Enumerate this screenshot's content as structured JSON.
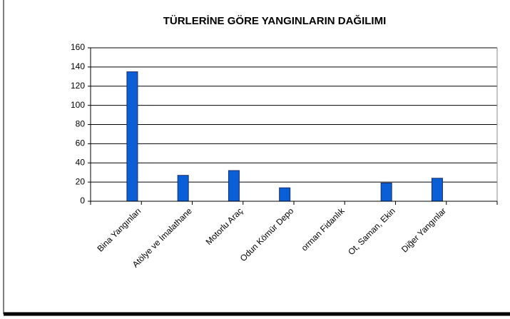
{
  "chart_data": {
    "type": "bar",
    "title": "TÜRLERİNE GÖRE YANGINLARIN DAĞILIMI",
    "categories": [
      "Bina Yangınları",
      "Atölye ve İmalathane",
      "Motorlu Araç",
      "Odun Kömür Depo",
      "orman Fidanlık",
      "Ot, Saman, Ekin",
      "Diğer Yangınlar",
      null
    ],
    "values": [
      135,
      27,
      32,
      14,
      0,
      19,
      24,
      null
    ],
    "color": "#0a5fd6",
    "ylim": [
      0,
      160
    ],
    "yticks": [
      0,
      20,
      40,
      60,
      80,
      100,
      120,
      140,
      160
    ],
    "grid": true
  }
}
